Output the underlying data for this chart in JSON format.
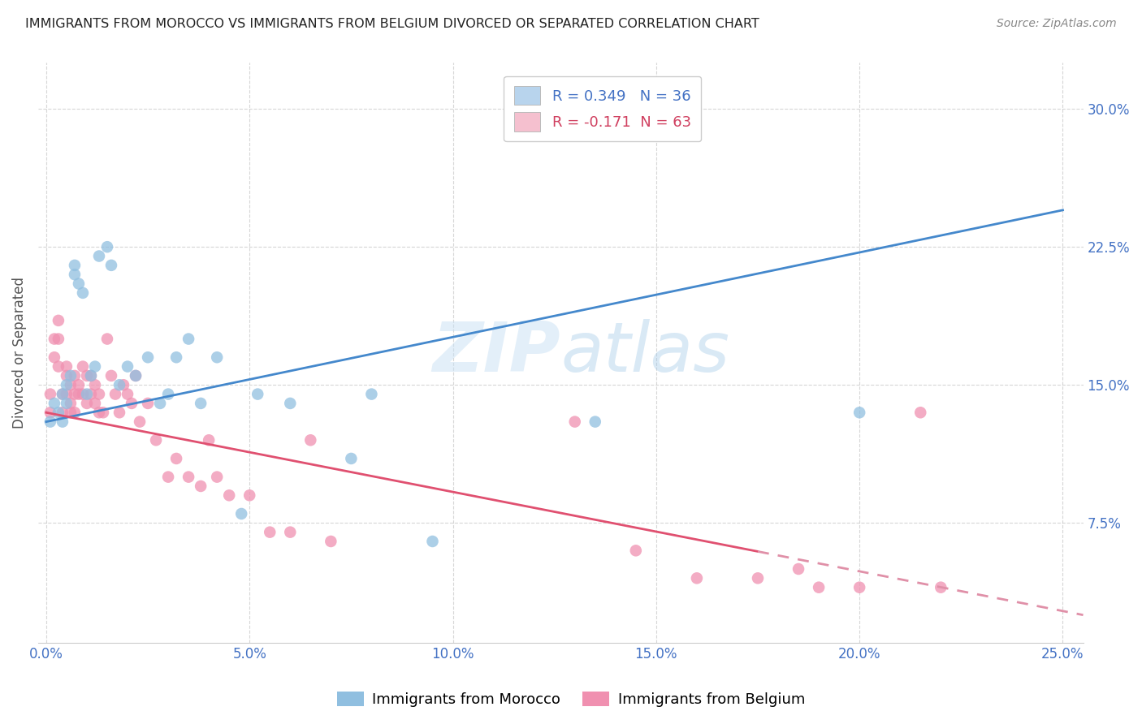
{
  "title": "IMMIGRANTS FROM MOROCCO VS IMMIGRANTS FROM BELGIUM DIVORCED OR SEPARATED CORRELATION CHART",
  "source": "Source: ZipAtlas.com",
  "ylabel": "Divorced or Separated",
  "xticklabels": [
    "0.0%",
    "5.0%",
    "10.0%",
    "15.0%",
    "20.0%",
    "25.0%"
  ],
  "xticks": [
    0.0,
    0.05,
    0.1,
    0.15,
    0.2,
    0.25
  ],
  "yticklabels": [
    "7.5%",
    "15.0%",
    "22.5%",
    "30.0%"
  ],
  "yticks": [
    0.075,
    0.15,
    0.225,
    0.3
  ],
  "xlim": [
    -0.002,
    0.255
  ],
  "ylim": [
    0.01,
    0.325
  ],
  "legend_label1": "R = 0.349   N = 36",
  "legend_label2": "R = -0.171  N = 63",
  "legend_color1": "#b8d4ed",
  "legend_color2": "#f5c0cf",
  "watermark": "ZIPatlas",
  "morocco_color": "#90bfe0",
  "belgium_color": "#f090b0",
  "morocco_line_color": "#4488cc",
  "belgium_line_solid_color": "#e05070",
  "belgium_line_dash_color": "#e090a8",
  "background_color": "#ffffff",
  "grid_color": "#cccccc",
  "morocco_x": [
    0.001,
    0.002,
    0.003,
    0.004,
    0.004,
    0.005,
    0.005,
    0.006,
    0.007,
    0.007,
    0.008,
    0.009,
    0.01,
    0.011,
    0.012,
    0.013,
    0.015,
    0.016,
    0.018,
    0.02,
    0.022,
    0.025,
    0.028,
    0.03,
    0.032,
    0.035,
    0.038,
    0.042,
    0.048,
    0.052,
    0.06,
    0.075,
    0.08,
    0.095,
    0.135,
    0.2
  ],
  "morocco_y": [
    0.13,
    0.14,
    0.135,
    0.13,
    0.145,
    0.15,
    0.14,
    0.155,
    0.21,
    0.215,
    0.205,
    0.2,
    0.145,
    0.155,
    0.16,
    0.22,
    0.225,
    0.215,
    0.15,
    0.16,
    0.155,
    0.165,
    0.14,
    0.145,
    0.165,
    0.175,
    0.14,
    0.165,
    0.08,
    0.145,
    0.14,
    0.11,
    0.145,
    0.065,
    0.13,
    0.135
  ],
  "belgium_x": [
    0.001,
    0.001,
    0.002,
    0.002,
    0.003,
    0.003,
    0.003,
    0.004,
    0.004,
    0.005,
    0.005,
    0.005,
    0.006,
    0.006,
    0.006,
    0.007,
    0.007,
    0.007,
    0.008,
    0.008,
    0.009,
    0.009,
    0.01,
    0.01,
    0.011,
    0.011,
    0.012,
    0.012,
    0.013,
    0.013,
    0.014,
    0.015,
    0.016,
    0.017,
    0.018,
    0.019,
    0.02,
    0.021,
    0.022,
    0.023,
    0.025,
    0.027,
    0.03,
    0.032,
    0.035,
    0.038,
    0.04,
    0.042,
    0.045,
    0.05,
    0.055,
    0.06,
    0.065,
    0.07,
    0.13,
    0.145,
    0.16,
    0.175,
    0.185,
    0.19,
    0.2,
    0.215,
    0.22
  ],
  "belgium_y": [
    0.145,
    0.135,
    0.175,
    0.165,
    0.185,
    0.175,
    0.16,
    0.145,
    0.135,
    0.155,
    0.145,
    0.16,
    0.14,
    0.15,
    0.135,
    0.155,
    0.145,
    0.135,
    0.15,
    0.145,
    0.145,
    0.16,
    0.155,
    0.14,
    0.155,
    0.145,
    0.15,
    0.14,
    0.145,
    0.135,
    0.135,
    0.175,
    0.155,
    0.145,
    0.135,
    0.15,
    0.145,
    0.14,
    0.155,
    0.13,
    0.14,
    0.12,
    0.1,
    0.11,
    0.1,
    0.095,
    0.12,
    0.1,
    0.09,
    0.09,
    0.07,
    0.07,
    0.12,
    0.065,
    0.13,
    0.06,
    0.045,
    0.045,
    0.05,
    0.04,
    0.04,
    0.135,
    0.04
  ],
  "morocco_line_x0": 0.0,
  "morocco_line_x1": 0.25,
  "morocco_line_y0": 0.13,
  "morocco_line_y1": 0.245,
  "belgium_line_x0": 0.0,
  "belgium_line_solid_x1": 0.175,
  "belgium_line_x1": 0.255,
  "belgium_line_y0": 0.135,
  "belgium_line_y1": 0.025
}
